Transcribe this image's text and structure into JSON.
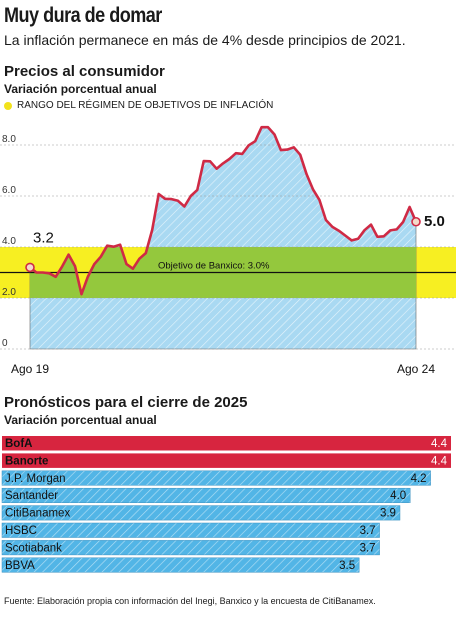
{
  "header": {
    "title": "Muy dura de domar",
    "subtitle": "La inflación permanece en más de 4% desde principios de 2021."
  },
  "footer": {
    "source": "Fuente: Elaboración propia con información del Inegi, Banxico y la encuesta de CitiBanamex."
  },
  "colors": {
    "line": "#cf2a45",
    "area": "#a9d9f2",
    "target_band": "#f7ef22",
    "green_band": "#94c83d",
    "bar_red": "#d7253f",
    "bar_blue": "#52b5e6"
  },
  "chart_data": [
    {
      "type": "line",
      "title": "Precios al consumidor",
      "subtitle": "Variación porcentual anual",
      "legend": [
        "RANGO DEL RÉGIMEN DE OBJETIVOS DE INFLACIÓN"
      ],
      "xlabel": "",
      "ylabel": "",
      "ylim": [
        0,
        9
      ],
      "yticks": [
        "0",
        "2.0",
        "4.0",
        "6.0",
        "8.0"
      ],
      "x_tick_labels": [
        "Ago 19",
        "Ago 24"
      ],
      "target_range": [
        2.0,
        4.0
      ],
      "target_label": "Objetivo de Banxico: 3.0%",
      "target_value": 3.0,
      "start_label": "3.2",
      "end_label": "5.0",
      "x": [
        "2019-08",
        "2019-09",
        "2019-10",
        "2019-11",
        "2019-12",
        "2020-01",
        "2020-02",
        "2020-03",
        "2020-04",
        "2020-05",
        "2020-06",
        "2020-07",
        "2020-08",
        "2020-09",
        "2020-10",
        "2020-11",
        "2020-12",
        "2021-01",
        "2021-02",
        "2021-03",
        "2021-04",
        "2021-05",
        "2021-06",
        "2021-07",
        "2021-08",
        "2021-09",
        "2021-10",
        "2021-11",
        "2021-12",
        "2022-01",
        "2022-02",
        "2022-03",
        "2022-04",
        "2022-05",
        "2022-06",
        "2022-07",
        "2022-08",
        "2022-09",
        "2022-10",
        "2022-11",
        "2022-12",
        "2023-01",
        "2023-02",
        "2023-03",
        "2023-04",
        "2023-05",
        "2023-06",
        "2023-07",
        "2023-08",
        "2023-09",
        "2023-10",
        "2023-11",
        "2023-12",
        "2024-01",
        "2024-02",
        "2024-03",
        "2024-04",
        "2024-05",
        "2024-06",
        "2024-07",
        "2024-08"
      ],
      "values": [
        3.2,
        3.0,
        3.0,
        2.97,
        2.83,
        3.24,
        3.7,
        3.25,
        2.15,
        2.84,
        3.33,
        3.62,
        4.05,
        4.01,
        4.09,
        3.33,
        3.15,
        3.54,
        3.76,
        4.67,
        6.08,
        5.89,
        5.88,
        5.81,
        5.59,
        6.0,
        6.24,
        7.37,
        7.36,
        7.07,
        7.28,
        7.45,
        7.68,
        7.65,
        7.99,
        8.15,
        8.7,
        8.7,
        8.41,
        7.8,
        7.82,
        7.91,
        7.62,
        6.85,
        6.25,
        5.84,
        5.06,
        4.79,
        4.64,
        4.45,
        4.26,
        4.32,
        4.66,
        4.88,
        4.4,
        4.42,
        4.65,
        4.69,
        4.98,
        5.57,
        4.99
      ]
    },
    {
      "type": "bar",
      "title": "Pronósticos para el cierre de 2025",
      "subtitle": "Variación porcentual anual",
      "categories": [
        "BofA",
        "Banorte",
        "J.P. Morgan",
        "Santander",
        "CitiBanamex",
        "HSBC",
        "Scotiabank",
        "BBVA"
      ],
      "values": [
        4.4,
        4.4,
        4.2,
        4.0,
        3.9,
        3.7,
        3.7,
        3.5
      ],
      "value_labels": [
        "4.4",
        "4.4",
        "4.2",
        "4.0",
        "3.9",
        "3.7",
        "3.7",
        "3.5"
      ],
      "highlight": [
        true,
        true,
        false,
        false,
        false,
        false,
        false,
        false
      ],
      "xlim": [
        0,
        4.4
      ]
    }
  ]
}
